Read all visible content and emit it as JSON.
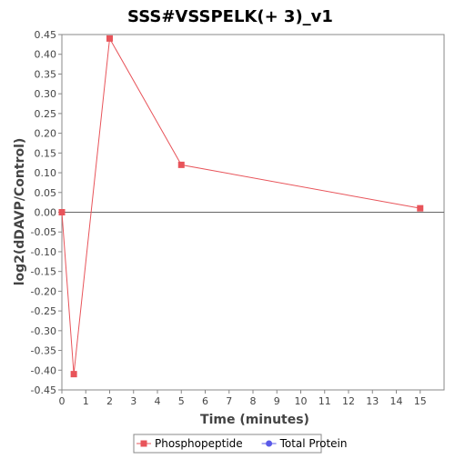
{
  "chart_data": {
    "type": "line",
    "title": "SSS#VSSPELK(+ 3)_v1",
    "xlabel": "Time (minutes)",
    "ylabel": "log2(dDAVP/Control)",
    "xlim": [
      0,
      16
    ],
    "ylim": [
      -0.45,
      0.45
    ],
    "x_ticks": [
      0,
      1,
      2,
      3,
      4,
      5,
      6,
      7,
      8,
      9,
      10,
      11,
      12,
      13,
      14,
      15
    ],
    "y_ticks": [
      0.45,
      0.4,
      0.35,
      0.3,
      0.25,
      0.2,
      0.15,
      0.1,
      0.05,
      0.0,
      -0.05,
      -0.1,
      -0.15,
      -0.2,
      -0.25,
      -0.3,
      -0.35,
      -0.4,
      -0.45
    ],
    "grid": false,
    "zero_line": true,
    "legend_position": "bottom",
    "series": [
      {
        "name": "Phosphopeptide",
        "color": "#e8545a",
        "marker": "square",
        "x": [
          0,
          0.5,
          2,
          5,
          15
        ],
        "y": [
          0.0,
          -0.41,
          0.44,
          0.12,
          0.01
        ]
      },
      {
        "name": "Total Protein",
        "color": "#5a5ae8",
        "marker": "circle",
        "x": [],
        "y": []
      }
    ]
  }
}
